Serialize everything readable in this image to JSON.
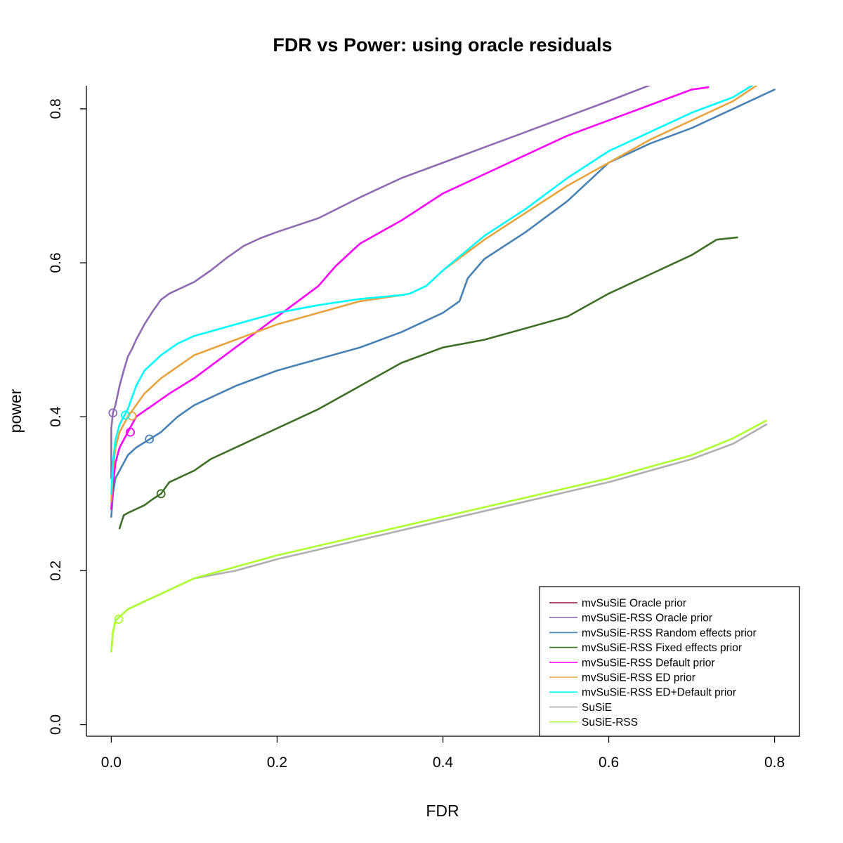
{
  "chart_data": {
    "type": "line",
    "title": "FDR vs Power: using oracle residuals",
    "xlabel": "FDR",
    "ylabel": "power",
    "xlim": [
      -0.03,
      0.83
    ],
    "ylim": [
      -0.015,
      0.83
    ],
    "xticks": [
      0.0,
      0.2,
      0.4,
      0.6,
      0.8
    ],
    "xtick_labels": [
      "0.0",
      "0.2",
      "0.4",
      "0.6",
      "0.8"
    ],
    "yticks": [
      0.0,
      0.2,
      0.4,
      0.6,
      0.8
    ],
    "ytick_labels": [
      "0.0",
      "0.2",
      "0.4",
      "0.6",
      "0.8"
    ],
    "grid": false,
    "legend_position": "bottom-right",
    "series": [
      {
        "name": "mvSuSiE Oracle prior",
        "color": "#8B1A3A",
        "x": [],
        "y": [],
        "marker": null
      },
      {
        "name": "mvSuSiE-RSS Oracle prior",
        "color": "#8E6BB3",
        "x": [
          0.0,
          0.0,
          0.002,
          0.005,
          0.01,
          0.015,
          0.02,
          0.025,
          0.03,
          0.04,
          0.05,
          0.06,
          0.07,
          0.08,
          0.1,
          0.12,
          0.14,
          0.16,
          0.18,
          0.2,
          0.25,
          0.3,
          0.35,
          0.4,
          0.45,
          0.5,
          0.55,
          0.6,
          0.66
        ],
        "y": [
          0.32,
          0.385,
          0.405,
          0.415,
          0.44,
          0.46,
          0.478,
          0.488,
          0.5,
          0.52,
          0.537,
          0.552,
          0.56,
          0.565,
          0.575,
          0.59,
          0.607,
          0.622,
          0.632,
          0.64,
          0.658,
          0.685,
          0.71,
          0.73,
          0.75,
          0.77,
          0.79,
          0.81,
          0.835
        ],
        "marker": [
          0.002,
          0.405
        ]
      },
      {
        "name": "mvSuSiE-RSS Random effects prior",
        "color": "#4682B4",
        "x": [
          0.0,
          0.002,
          0.005,
          0.01,
          0.02,
          0.03,
          0.045,
          0.06,
          0.08,
          0.1,
          0.15,
          0.2,
          0.25,
          0.3,
          0.35,
          0.4,
          0.42,
          0.43,
          0.45,
          0.5,
          0.55,
          0.6,
          0.65,
          0.7,
          0.75,
          0.8
        ],
        "y": [
          0.27,
          0.3,
          0.32,
          0.33,
          0.35,
          0.36,
          0.37,
          0.38,
          0.4,
          0.415,
          0.44,
          0.46,
          0.475,
          0.49,
          0.51,
          0.535,
          0.55,
          0.58,
          0.605,
          0.64,
          0.68,
          0.73,
          0.755,
          0.775,
          0.8,
          0.825
        ],
        "marker": [
          0.046,
          0.371
        ]
      },
      {
        "name": "mvSuSiE-RSS Fixed effects prior",
        "color": "#3F6F26",
        "x": [
          0.01,
          0.015,
          0.02,
          0.03,
          0.04,
          0.05,
          0.06,
          0.07,
          0.08,
          0.1,
          0.12,
          0.15,
          0.18,
          0.2,
          0.25,
          0.3,
          0.35,
          0.4,
          0.45,
          0.5,
          0.55,
          0.6,
          0.65,
          0.7,
          0.73,
          0.755
        ],
        "y": [
          0.255,
          0.272,
          0.275,
          0.28,
          0.285,
          0.293,
          0.3,
          0.315,
          0.32,
          0.33,
          0.345,
          0.36,
          0.375,
          0.385,
          0.41,
          0.44,
          0.47,
          0.49,
          0.5,
          0.515,
          0.53,
          0.56,
          0.585,
          0.61,
          0.63,
          0.633
        ],
        "marker": [
          0.06,
          0.3
        ]
      },
      {
        "name": "mvSuSiE-RSS Default prior",
        "color": "#FF00FF",
        "x": [
          0.0,
          0.002,
          0.005,
          0.01,
          0.015,
          0.02,
          0.025,
          0.03,
          0.05,
          0.07,
          0.1,
          0.15,
          0.2,
          0.25,
          0.27,
          0.3,
          0.35,
          0.4,
          0.45,
          0.5,
          0.55,
          0.6,
          0.65,
          0.7,
          0.72
        ],
        "y": [
          0.28,
          0.31,
          0.34,
          0.36,
          0.37,
          0.38,
          0.39,
          0.4,
          0.415,
          0.43,
          0.45,
          0.49,
          0.53,
          0.57,
          0.595,
          0.625,
          0.655,
          0.69,
          0.715,
          0.74,
          0.765,
          0.785,
          0.805,
          0.825,
          0.828
        ],
        "marker": [
          0.023,
          0.38
        ]
      },
      {
        "name": "mvSuSiE-RSS ED prior",
        "color": "#E8A33D",
        "x": [
          0.0,
          0.002,
          0.005,
          0.01,
          0.015,
          0.02,
          0.03,
          0.04,
          0.06,
          0.08,
          0.1,
          0.15,
          0.2,
          0.25,
          0.3,
          0.35,
          0.36,
          0.38,
          0.4,
          0.45,
          0.5,
          0.55,
          0.6,
          0.65,
          0.7,
          0.75,
          0.785
        ],
        "y": [
          0.29,
          0.33,
          0.36,
          0.38,
          0.39,
          0.4,
          0.415,
          0.43,
          0.45,
          0.465,
          0.48,
          0.5,
          0.52,
          0.535,
          0.55,
          0.558,
          0.56,
          0.57,
          0.59,
          0.63,
          0.665,
          0.7,
          0.73,
          0.76,
          0.785,
          0.81,
          0.835
        ],
        "marker": [
          0.025,
          0.401
        ]
      },
      {
        "name": "mvSuSiE-RSS ED+Default prior",
        "color": "#00FFFF",
        "x": [
          0.0,
          0.002,
          0.005,
          0.01,
          0.015,
          0.02,
          0.03,
          0.04,
          0.06,
          0.08,
          0.1,
          0.15,
          0.2,
          0.25,
          0.3,
          0.35,
          0.36,
          0.38,
          0.4,
          0.45,
          0.5,
          0.55,
          0.6,
          0.65,
          0.7,
          0.75,
          0.78
        ],
        "y": [
          0.3,
          0.34,
          0.37,
          0.39,
          0.4,
          0.41,
          0.44,
          0.46,
          0.48,
          0.495,
          0.505,
          0.52,
          0.535,
          0.545,
          0.553,
          0.558,
          0.56,
          0.57,
          0.59,
          0.635,
          0.67,
          0.71,
          0.745,
          0.77,
          0.795,
          0.815,
          0.835
        ],
        "marker": [
          0.017,
          0.402
        ]
      },
      {
        "name": "SuSiE",
        "color": "#B0B0B0",
        "x": [
          0.0,
          0.002,
          0.005,
          0.01,
          0.02,
          0.04,
          0.06,
          0.08,
          0.1,
          0.15,
          0.2,
          0.3,
          0.4,
          0.5,
          0.6,
          0.7,
          0.75,
          0.79
        ],
        "y": [
          0.095,
          0.12,
          0.135,
          0.14,
          0.15,
          0.16,
          0.17,
          0.18,
          0.19,
          0.2,
          0.215,
          0.24,
          0.265,
          0.29,
          0.315,
          0.345,
          0.365,
          0.39
        ],
        "marker": null
      },
      {
        "name": "SuSiE-RSS",
        "color": "#ADFF2F",
        "x": [
          0.0,
          0.002,
          0.005,
          0.01,
          0.02,
          0.04,
          0.06,
          0.08,
          0.1,
          0.15,
          0.2,
          0.3,
          0.4,
          0.5,
          0.6,
          0.7,
          0.75,
          0.79
        ],
        "y": [
          0.095,
          0.12,
          0.135,
          0.14,
          0.15,
          0.16,
          0.17,
          0.18,
          0.19,
          0.205,
          0.22,
          0.245,
          0.27,
          0.295,
          0.32,
          0.35,
          0.372,
          0.395
        ],
        "marker": [
          0.009,
          0.137
        ]
      }
    ]
  }
}
